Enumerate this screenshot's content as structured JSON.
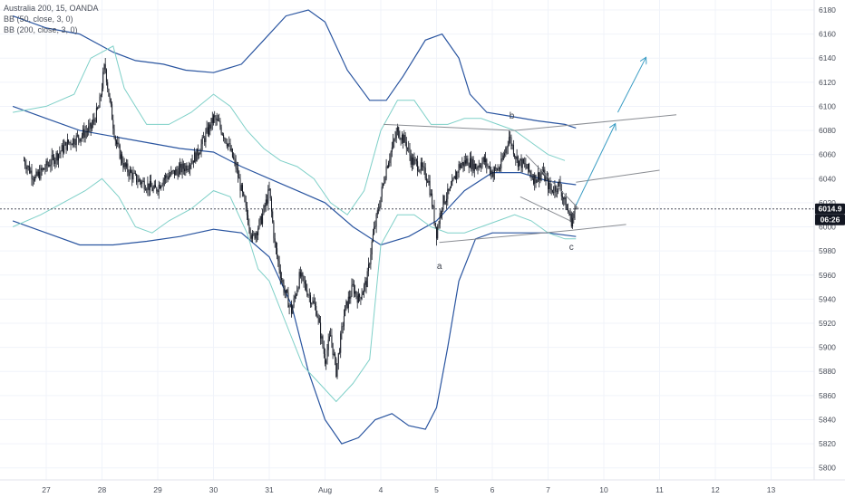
{
  "legend": {
    "symbol": "Australia 200, 15, OANDA",
    "bb50": "BB (50, close, 3, 0)",
    "bb200": "BB (200, close, 3, 0)"
  },
  "colors": {
    "candle": "#131722",
    "bb50": "#7fd0c8",
    "bb200": "#2a55a0",
    "drawing": "#8a8d93",
    "arrow": "#3b9dc4",
    "priceLine": "#4a4f5a",
    "badge": "#131722"
  },
  "price_badge": {
    "price": "6014.9",
    "countdown": "06:26"
  },
  "wave_labels": [
    {
      "id": "a",
      "text": "a"
    },
    {
      "id": "b",
      "text": "b"
    },
    {
      "id": "c",
      "text": "c"
    }
  ],
  "chart_data": {
    "type": "candlestick",
    "x_axis": {
      "ticks": [
        {
          "label": "27",
          "day": 0
        },
        {
          "label": "28",
          "day": 1
        },
        {
          "label": "29",
          "day": 2
        },
        {
          "label": "30",
          "day": 3
        },
        {
          "label": "31",
          "day": 4
        },
        {
          "label": "Aug",
          "day": 5
        },
        {
          "label": "4",
          "day": 6
        },
        {
          "label": "5",
          "day": 7
        },
        {
          "label": "6",
          "day": 8
        },
        {
          "label": "7",
          "day": 9
        },
        {
          "label": "10",
          "day": 10
        },
        {
          "label": "11",
          "day": 11
        },
        {
          "label": "12",
          "day": 12
        },
        {
          "label": "13",
          "day": 13
        }
      ]
    },
    "y_axis": {
      "ticks": [
        5800,
        5820,
        5840,
        5860,
        5880,
        5900,
        5920,
        5940,
        5960,
        5980,
        6000,
        6020,
        6040,
        6060,
        6080,
        6100,
        6120,
        6140,
        6160,
        6180
      ],
      "range": [
        5790,
        6186
      ]
    },
    "last_price": 6014.9,
    "series_close": [
      [
        -0.4,
        6055
      ],
      [
        -0.2,
        6040
      ],
      [
        0.0,
        6050
      ],
      [
        0.2,
        6060
      ],
      [
        0.4,
        6070
      ],
      [
        0.6,
        6075
      ],
      [
        0.8,
        6082
      ],
      [
        0.95,
        6100
      ],
      [
        1.05,
        6135
      ],
      [
        1.12,
        6110
      ],
      [
        1.25,
        6070
      ],
      [
        1.4,
        6050
      ],
      [
        1.6,
        6040
      ],
      [
        1.8,
        6035
      ],
      [
        1.95,
        6030
      ],
      [
        2.1,
        6040
      ],
      [
        2.3,
        6045
      ],
      [
        2.5,
        6050
      ],
      [
        2.7,
        6060
      ],
      [
        2.85,
        6075
      ],
      [
        3.0,
        6090
      ],
      [
        3.1,
        6085
      ],
      [
        3.25,
        6070
      ],
      [
        3.4,
        6050
      ],
      [
        3.55,
        6020
      ],
      [
        3.7,
        5990
      ],
      [
        3.85,
        6005
      ],
      [
        4.0,
        6030
      ],
      [
        4.1,
        5985
      ],
      [
        4.25,
        5950
      ],
      [
        4.4,
        5930
      ],
      [
        4.55,
        5960
      ],
      [
        4.7,
        5945
      ],
      [
        4.85,
        5930
      ],
      [
        5.0,
        5890
      ],
      [
        5.1,
        5910
      ],
      [
        5.2,
        5880
      ],
      [
        5.35,
        5930
      ],
      [
        5.5,
        5950
      ],
      [
        5.6,
        5940
      ],
      [
        5.75,
        5955
      ],
      [
        5.85,
        5990
      ],
      [
        6.0,
        6025
      ],
      [
        6.1,
        6050
      ],
      [
        6.2,
        6065
      ],
      [
        6.3,
        6080
      ],
      [
        6.45,
        6070
      ],
      [
        6.55,
        6055
      ],
      [
        6.7,
        6050
      ],
      [
        6.85,
        6040
      ],
      [
        7.0,
        5995
      ],
      [
        7.1,
        6020
      ],
      [
        7.25,
        6030
      ],
      [
        7.4,
        6050
      ],
      [
        7.55,
        6055
      ],
      [
        7.7,
        6050
      ],
      [
        7.85,
        6055
      ],
      [
        8.0,
        6045
      ],
      [
        8.15,
        6050
      ],
      [
        8.3,
        6075
      ],
      [
        8.45,
        6055
      ],
      [
        8.6,
        6050
      ],
      [
        8.75,
        6040
      ],
      [
        8.9,
        6045
      ],
      [
        9.05,
        6030
      ],
      [
        9.2,
        6035
      ],
      [
        9.3,
        6020
      ],
      [
        9.42,
        6005
      ],
      [
        9.5,
        6015
      ]
    ],
    "bb50_upper": [
      [
        -0.6,
        6095
      ],
      [
        0.0,
        6100
      ],
      [
        0.5,
        6110
      ],
      [
        0.8,
        6140
      ],
      [
        1.2,
        6150
      ],
      [
        1.4,
        6115
      ],
      [
        1.8,
        6085
      ],
      [
        2.2,
        6085
      ],
      [
        2.6,
        6095
      ],
      [
        3.0,
        6110
      ],
      [
        3.3,
        6100
      ],
      [
        3.6,
        6080
      ],
      [
        3.9,
        6065
      ],
      [
        4.2,
        6055
      ],
      [
        4.5,
        6050
      ],
      [
        4.8,
        6040
      ],
      [
        5.1,
        6020
      ],
      [
        5.4,
        6010
      ],
      [
        5.7,
        6030
      ],
      [
        6.0,
        6080
      ],
      [
        6.3,
        6105
      ],
      [
        6.6,
        6105
      ],
      [
        6.9,
        6085
      ],
      [
        7.2,
        6085
      ],
      [
        7.5,
        6090
      ],
      [
        7.8,
        6090
      ],
      [
        8.1,
        6085
      ],
      [
        8.4,
        6080
      ],
      [
        8.7,
        6070
      ],
      [
        9.0,
        6060
      ],
      [
        9.3,
        6055
      ]
    ],
    "bb50_lower": [
      [
        -0.6,
        6000
      ],
      [
        -0.1,
        6010
      ],
      [
        0.3,
        6020
      ],
      [
        0.7,
        6030
      ],
      [
        1.0,
        6040
      ],
      [
        1.3,
        6025
      ],
      [
        1.6,
        6000
      ],
      [
        1.9,
        5995
      ],
      [
        2.2,
        6005
      ],
      [
        2.6,
        6015
      ],
      [
        3.0,
        6030
      ],
      [
        3.3,
        6025
      ],
      [
        3.6,
        5995
      ],
      [
        3.8,
        5965
      ],
      [
        4.0,
        5955
      ],
      [
        4.3,
        5920
      ],
      [
        4.6,
        5885
      ],
      [
        4.9,
        5870
      ],
      [
        5.2,
        5855
      ],
      [
        5.5,
        5870
      ],
      [
        5.8,
        5890
      ],
      [
        6.0,
        5985
      ],
      [
        6.3,
        6010
      ],
      [
        6.6,
        6010
      ],
      [
        6.9,
        6000
      ],
      [
        7.2,
        5995
      ],
      [
        7.5,
        5995
      ],
      [
        7.8,
        6000
      ],
      [
        8.1,
        6005
      ],
      [
        8.4,
        6010
      ],
      [
        8.7,
        6005
      ],
      [
        9.0,
        5995
      ],
      [
        9.3,
        5990
      ],
      [
        9.5,
        5990
      ]
    ],
    "bb200_upper": [
      [
        -0.6,
        6175
      ],
      [
        0.0,
        6165
      ],
      [
        0.6,
        6160
      ],
      [
        1.2,
        6145
      ],
      [
        1.6,
        6138
      ],
      [
        2.1,
        6135
      ],
      [
        2.5,
        6130
      ],
      [
        3.0,
        6128
      ],
      [
        3.5,
        6135
      ],
      [
        3.9,
        6155
      ],
      [
        4.3,
        6175
      ],
      [
        4.7,
        6180
      ],
      [
        5.0,
        6170
      ],
      [
        5.4,
        6130
      ],
      [
        5.8,
        6105
      ],
      [
        6.1,
        6105
      ],
      [
        6.4,
        6125
      ],
      [
        6.8,
        6155
      ],
      [
        7.1,
        6160
      ],
      [
        7.4,
        6140
      ],
      [
        7.6,
        6110
      ],
      [
        7.9,
        6095
      ],
      [
        8.3,
        6092
      ],
      [
        8.8,
        6088
      ],
      [
        9.3,
        6085
      ],
      [
        9.5,
        6082
      ]
    ],
    "bb200_basis": [
      [
        -0.6,
        6100
      ],
      [
        0.0,
        6090
      ],
      [
        0.6,
        6080
      ],
      [
        1.2,
        6075
      ],
      [
        1.8,
        6070
      ],
      [
        2.4,
        6065
      ],
      [
        3.0,
        6062
      ],
      [
        3.5,
        6050
      ],
      [
        4.0,
        6040
      ],
      [
        4.5,
        6030
      ],
      [
        5.0,
        6020
      ],
      [
        5.5,
        6000
      ],
      [
        6.0,
        5985
      ],
      [
        6.5,
        5992
      ],
      [
        7.0,
        6005
      ],
      [
        7.5,
        6030
      ],
      [
        8.0,
        6045
      ],
      [
        8.5,
        6045
      ],
      [
        9.0,
        6038
      ],
      [
        9.5,
        6035
      ]
    ],
    "bb200_lower": [
      [
        -0.6,
        6005
      ],
      [
        0.0,
        5995
      ],
      [
        0.6,
        5985
      ],
      [
        1.2,
        5985
      ],
      [
        1.8,
        5988
      ],
      [
        2.4,
        5992
      ],
      [
        3.0,
        5998
      ],
      [
        3.5,
        5995
      ],
      [
        4.0,
        5975
      ],
      [
        4.4,
        5935
      ],
      [
        4.7,
        5880
      ],
      [
        5.0,
        5840
      ],
      [
        5.3,
        5820
      ],
      [
        5.6,
        5825
      ],
      [
        5.9,
        5840
      ],
      [
        6.2,
        5845
      ],
      [
        6.5,
        5835
      ],
      [
        6.8,
        5832
      ],
      [
        7.0,
        5850
      ],
      [
        7.2,
        5900
      ],
      [
        7.4,
        5955
      ],
      [
        7.7,
        5990
      ],
      [
        8.0,
        5995
      ],
      [
        8.5,
        5995
      ],
      [
        9.0,
        5995
      ],
      [
        9.5,
        5992
      ]
    ],
    "drawings": {
      "upper_channel_1": [
        [
          6.05,
          6085
        ],
        [
          8.4,
          6080
        ]
      ],
      "upper_channel_2": [
        [
          8.4,
          6080
        ],
        [
          11.3,
          6093
        ]
      ],
      "mid_channel": [
        [
          9.5,
          6037
        ],
        [
          11.0,
          6047
        ]
      ],
      "lower_channel_1": [
        [
          7.05,
          5987
        ],
        [
          9.4,
          5997
        ]
      ],
      "lower_channel_2": [
        [
          9.4,
          5997
        ],
        [
          10.4,
          6002
        ]
      ],
      "wedge_top": [
        [
          8.6,
          6060
        ],
        [
          9.55,
          6015
        ]
      ],
      "wedge_bottom": [
        [
          8.5,
          6025
        ],
        [
          9.4,
          6005
        ]
      ],
      "forecast_1": [
        [
          9.5,
          6018
        ],
        [
          10.2,
          6085
        ]
      ],
      "forecast_2": [
        [
          10.25,
          6095
        ],
        [
          10.75,
          6140
        ]
      ]
    }
  }
}
